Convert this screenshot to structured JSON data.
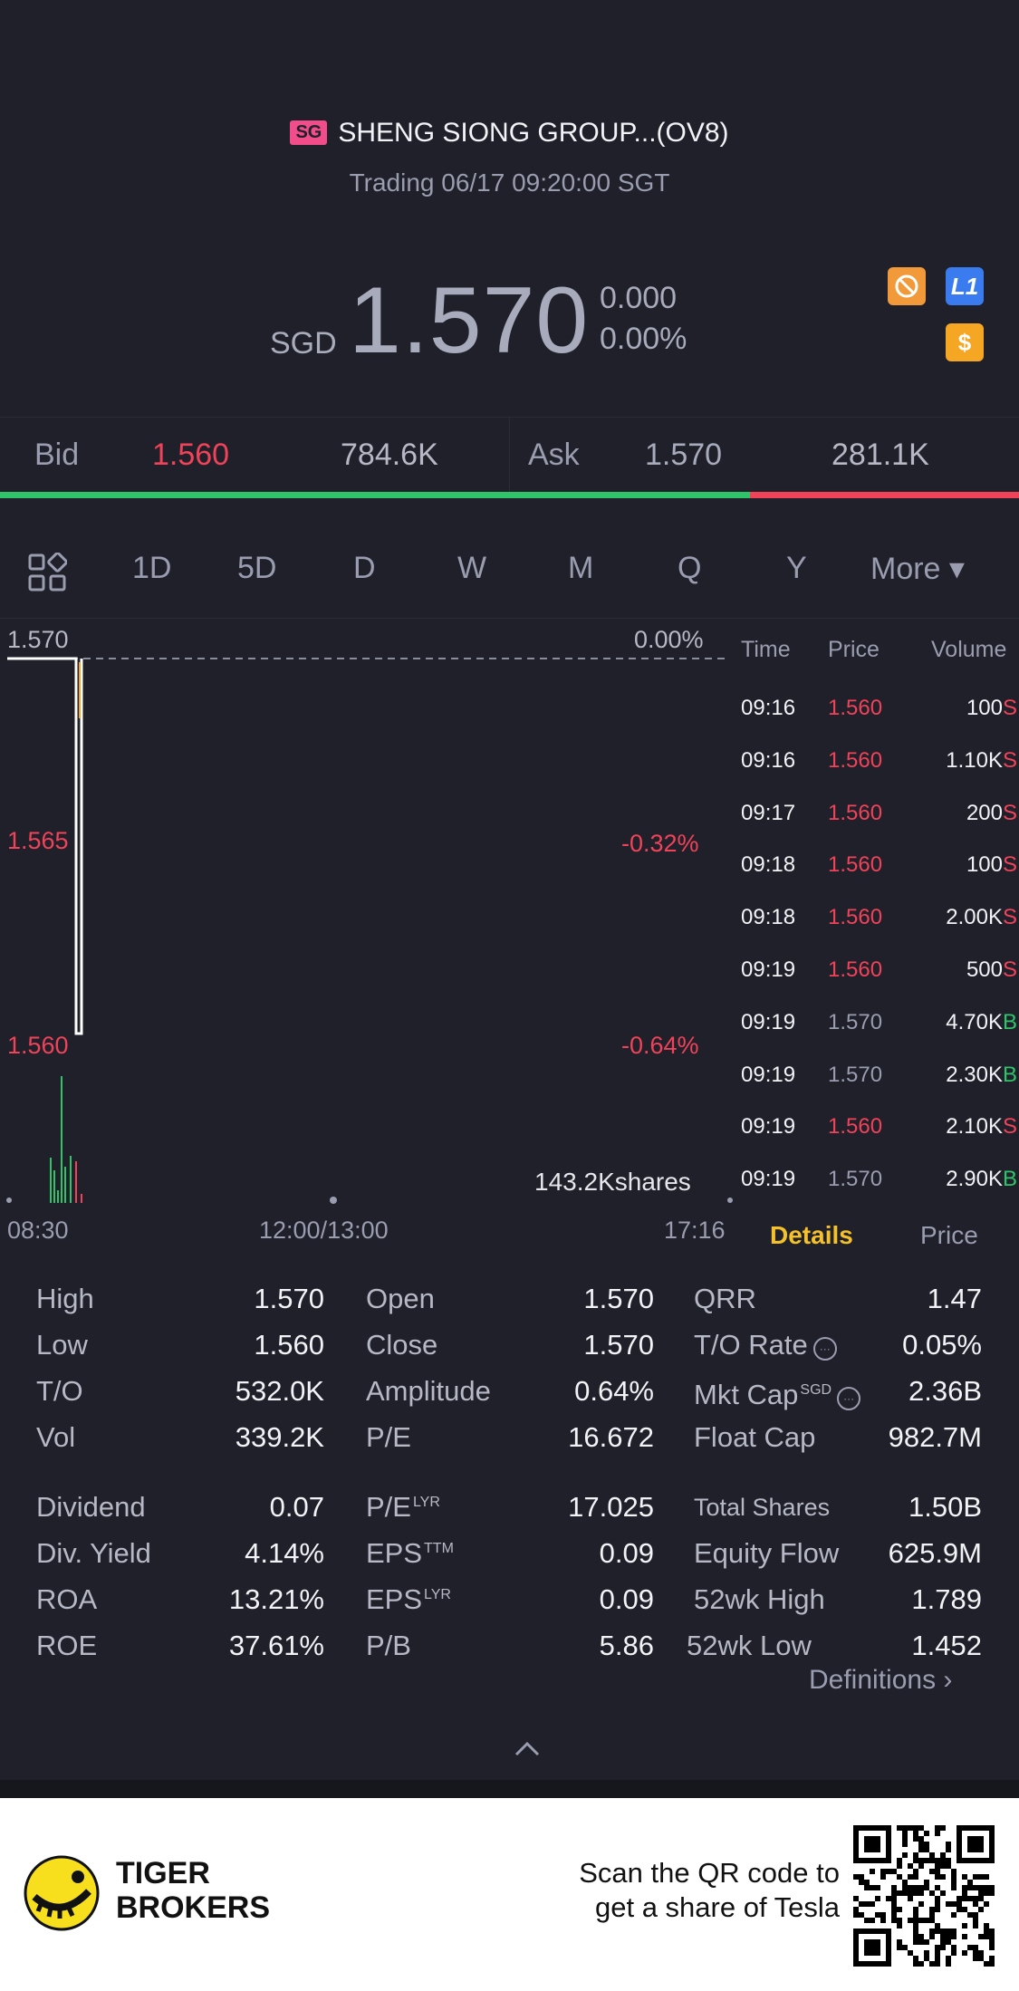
{
  "header": {
    "market_badge": "SG",
    "title": "SHENG SIONG GROUP...(OV8)",
    "subtitle": "Trading 06/17 09:20:00 SGT",
    "currency": "SGD",
    "price": "1.570",
    "change": "0.000",
    "change_pct": "0.00%",
    "badge_l1": "L1",
    "badge_dollar": "$"
  },
  "bidask": {
    "bid_label": "Bid",
    "bid_price": "1.560",
    "bid_size": "784.6K",
    "ask_label": "Ask",
    "ask_price": "1.570",
    "ask_size": "281.1K",
    "bid_fraction": 0.736
  },
  "tabs": [
    "1D",
    "5D",
    "D",
    "W",
    "M",
    "Q",
    "Y",
    "More ▾"
  ],
  "active_tab": "1D",
  "chart": {
    "price_top": "1.570",
    "pct_top": "0.00%",
    "price_mid": "1.565",
    "pct_mid": "-0.32%",
    "price_low": "1.560",
    "pct_low": "-0.64%",
    "volume_label": "143.2Kshares",
    "time_start": "08:30",
    "time_mid": "12:00/13:00",
    "time_end": "17:16"
  },
  "chart_data": {
    "type": "line",
    "title": "",
    "ylim": [
      1.56,
      1.57
    ],
    "x": [
      "08:30",
      "09:16",
      "09:19",
      "09:20"
    ],
    "series": [
      {
        "values": [
          1.57,
          1.56,
          1.56,
          1.57
        ]
      }
    ],
    "grid": false
  },
  "trades": {
    "headers": {
      "time": "Time",
      "price": "Price",
      "volume": "Volume"
    },
    "rows": [
      {
        "time": "09:16",
        "price": "1.560",
        "volume": "100",
        "side": "S"
      },
      {
        "time": "09:16",
        "price": "1.560",
        "volume": "1.10K",
        "side": "S"
      },
      {
        "time": "09:17",
        "price": "1.560",
        "volume": "200",
        "side": "S"
      },
      {
        "time": "09:18",
        "price": "1.560",
        "volume": "100",
        "side": "S"
      },
      {
        "time": "09:18",
        "price": "1.560",
        "volume": "2.00K",
        "side": "S"
      },
      {
        "time": "09:19",
        "price": "1.560",
        "volume": "500",
        "side": "S"
      },
      {
        "time": "09:19",
        "price": "1.570",
        "volume": "4.70K",
        "side": "B"
      },
      {
        "time": "09:19",
        "price": "1.570",
        "volume": "2.30K",
        "side": "B"
      },
      {
        "time": "09:19",
        "price": "1.560",
        "volume": "2.10K",
        "side": "S"
      },
      {
        "time": "09:19",
        "price": "1.570",
        "volume": "2.90K",
        "side": "B"
      }
    ],
    "tab_details": "Details",
    "tab_price": "Price"
  },
  "stats": {
    "high_l": "High",
    "high_v": "1.570",
    "low_l": "Low",
    "low_v": "1.560",
    "to_l": "T/O",
    "to_v": "532.0K",
    "vol_l": "Vol",
    "vol_v": "339.2K",
    "open_l": "Open",
    "open_v": "1.570",
    "close_l": "Close",
    "close_v": "1.570",
    "amp_l": "Amplitude",
    "amp_v": "0.64%",
    "pe_l": "P/E",
    "pe_v": "16.672",
    "qrr_l": "QRR",
    "qrr_v": "1.47",
    "torate_l": "T/O Rate",
    "torate_v": "0.05%",
    "mktcap_l": "Mkt Cap",
    "mktcap_sup": "SGD",
    "mktcap_v": "2.36B",
    "float_l": "Float Cap",
    "float_v": "982.7M",
    "div_l": "Dividend",
    "div_v": "0.07",
    "divy_l": "Div. Yield",
    "divy_v": "4.14%",
    "roa_l": "ROA",
    "roa_v": "13.21%",
    "roe_l": "ROE",
    "roe_v": "37.61%",
    "pelyr_l": "P/E",
    "pelyr_sup": "LYR",
    "pelyr_v": "17.025",
    "epsttm_l": "EPS",
    "epsttm_sup": "TTM",
    "epsttm_v": "0.09",
    "epslyr_l": "EPS",
    "epslyr_sup": "LYR",
    "epslyr_v": "0.09",
    "pb_l": "P/B",
    "pb_v": "5.86",
    "tshares_l": "Total Shares",
    "tshares_v": "1.50B",
    "eflow_l": "Equity Flow",
    "eflow_v": "625.9M",
    "h52_l": "52wk High",
    "h52_v": "1.789",
    "l52_l": "52wk Low",
    "l52_v": "1.452",
    "definitions": "Definitions"
  },
  "footer": {
    "brand_line1": "TIGER",
    "brand_line2": "BROKERS",
    "promo_line1": "Scan the QR code to",
    "promo_line2": "get a share of Tesla"
  }
}
